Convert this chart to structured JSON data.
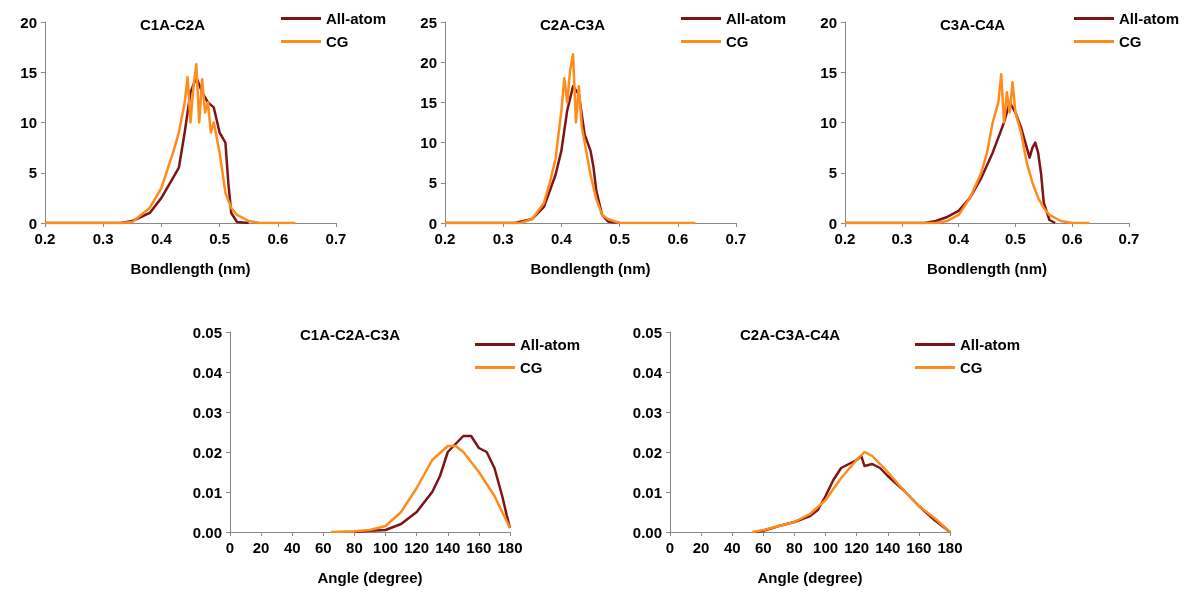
{
  "chart_data": [
    {
      "type": "line",
      "title": "C1A-C2A",
      "xlabel": "Bondlength (nm)",
      "xlim": [
        0.2,
        0.7
      ],
      "xticks": [
        0.2,
        0.3,
        0.4,
        0.5,
        0.6,
        0.7
      ],
      "ylim": [
        0,
        20
      ],
      "yticks": [
        0,
        5,
        10,
        15,
        20
      ],
      "grid": false,
      "legend": "top right",
      "series": [
        {
          "name": "All-atom",
          "color": "#7f1416",
          "x": [
            0.2,
            0.33,
            0.35,
            0.38,
            0.4,
            0.42,
            0.43,
            0.44,
            0.45,
            0.46,
            0.47,
            0.48,
            0.49,
            0.5,
            0.51,
            0.515,
            0.52,
            0.53,
            0.55
          ],
          "values": [
            0,
            0,
            0.2,
            1,
            2.5,
            4.5,
            5.5,
            9,
            13,
            14.5,
            13,
            12,
            11.5,
            9,
            8,
            4,
            1,
            0.1,
            0
          ]
        },
        {
          "name": "CG",
          "color": "#ff8c1a",
          "x": [
            0.2,
            0.33,
            0.35,
            0.38,
            0.4,
            0.42,
            0.43,
            0.44,
            0.445,
            0.45,
            0.455,
            0.46,
            0.465,
            0.47,
            0.475,
            0.48,
            0.485,
            0.49,
            0.5,
            0.505,
            0.51,
            0.52,
            0.53,
            0.55,
            0.57,
            0.63
          ],
          "values": [
            0,
            0,
            0.1,
            1.5,
            3.5,
            7,
            9,
            12,
            14.5,
            10,
            13.5,
            15.8,
            10,
            14.3,
            11,
            12,
            9,
            10,
            7,
            5,
            3,
            1.5,
            0.8,
            0.2,
            0,
            0
          ]
        }
      ]
    },
    {
      "type": "line",
      "title": "C2A-C3A",
      "xlabel": "Bondlength (nm)",
      "xlim": [
        0.2,
        0.7
      ],
      "xticks": [
        0.2,
        0.3,
        0.4,
        0.5,
        0.6,
        0.7
      ],
      "ylim": [
        0,
        25
      ],
      "yticks": [
        0,
        5,
        10,
        15,
        20,
        25
      ],
      "grid": false,
      "legend": "top right",
      "series": [
        {
          "name": "All-atom",
          "color": "#7f1416",
          "x": [
            0.2,
            0.32,
            0.35,
            0.37,
            0.39,
            0.4,
            0.41,
            0.42,
            0.43,
            0.44,
            0.45,
            0.455,
            0.46,
            0.47,
            0.48,
            0.5
          ],
          "values": [
            0,
            0,
            0.5,
            2,
            6,
            9,
            14,
            17,
            16,
            11,
            9,
            7,
            4,
            1,
            0.2,
            0
          ]
        },
        {
          "name": "CG",
          "color": "#ff8c1a",
          "x": [
            0.2,
            0.33,
            0.35,
            0.37,
            0.38,
            0.39,
            0.4,
            0.405,
            0.41,
            0.415,
            0.42,
            0.425,
            0.43,
            0.435,
            0.44,
            0.45,
            0.46,
            0.47,
            0.48,
            0.5,
            0.63
          ],
          "values": [
            0,
            0,
            0.5,
            2.5,
            5,
            8,
            14,
            18,
            15,
            19,
            21,
            12.5,
            17,
            12,
            10,
            6,
            3,
            1,
            0.5,
            0,
            0
          ]
        }
      ]
    },
    {
      "type": "line",
      "title": "C3A-C4A",
      "xlabel": "Bondlength (nm)",
      "xlim": [
        0.2,
        0.7
      ],
      "xticks": [
        0.2,
        0.3,
        0.4,
        0.5,
        0.6,
        0.7
      ],
      "ylim": [
        0,
        20
      ],
      "yticks": [
        0,
        5,
        10,
        15,
        20
      ],
      "grid": false,
      "legend": "top right",
      "series": [
        {
          "name": "All-atom",
          "color": "#7f1416",
          "x": [
            0.2,
            0.34,
            0.36,
            0.38,
            0.4,
            0.42,
            0.44,
            0.46,
            0.47,
            0.48,
            0.49,
            0.5,
            0.51,
            0.52,
            0.525,
            0.53,
            0.535,
            0.54,
            0.545,
            0.55,
            0.56,
            0.57
          ],
          "values": [
            0,
            0,
            0.2,
            0.6,
            1.2,
            2.5,
            4.5,
            7,
            8.5,
            10,
            12,
            11,
            9.5,
            7.5,
            6.5,
            7.5,
            8,
            7,
            5,
            2,
            0.3,
            0
          ]
        },
        {
          "name": "CG",
          "color": "#ff8c1a",
          "x": [
            0.2,
            0.36,
            0.38,
            0.4,
            0.42,
            0.44,
            0.45,
            0.46,
            0.47,
            0.475,
            0.48,
            0.485,
            0.49,
            0.495,
            0.5,
            0.51,
            0.52,
            0.53,
            0.54,
            0.55,
            0.56,
            0.58,
            0.6,
            0.63
          ],
          "values": [
            0,
            0,
            0.2,
            0.8,
            2.5,
            5,
            7,
            10,
            12,
            14.8,
            10,
            13,
            11,
            14,
            11,
            9,
            6,
            4,
            2.5,
            1.5,
            0.8,
            0.2,
            0,
            0
          ]
        }
      ]
    },
    {
      "type": "line",
      "title": "C1A-C2A-C3A",
      "xlabel": "Angle (degree)",
      "xlim": [
        0,
        180
      ],
      "xticks": [
        0,
        20,
        40,
        60,
        80,
        100,
        120,
        140,
        160,
        180
      ],
      "ylim": [
        0,
        0.05
      ],
      "yticks": [
        {
          "value": 0,
          "label": "0.00"
        },
        {
          "value": 0.01,
          "label": "0.01"
        },
        {
          "value": 0.02,
          "label": "0.02"
        },
        {
          "value": 0.03,
          "label": "0.03"
        },
        {
          "value": 0.04,
          "label": "0.04"
        },
        {
          "value": 0.05,
          "label": "0.05"
        }
      ],
      "grid": false,
      "legend": "top right",
      "series": [
        {
          "name": "All-atom",
          "color": "#7f1416",
          "x": [
            80,
            90,
            100,
            110,
            120,
            130,
            135,
            140,
            145,
            150,
            155,
            160,
            165,
            170,
            175,
            178,
            180
          ],
          "values": [
            0,
            0.0003,
            0.0005,
            0.002,
            0.005,
            0.01,
            0.014,
            0.02,
            0.022,
            0.024,
            0.024,
            0.021,
            0.02,
            0.016,
            0.009,
            0.004,
            0.001
          ]
        },
        {
          "name": "CG",
          "color": "#ff8c1a",
          "x": [
            65,
            80,
            90,
            100,
            110,
            120,
            130,
            140,
            145,
            150,
            160,
            170,
            180
          ],
          "values": [
            0,
            0.0002,
            0.0005,
            0.0015,
            0.005,
            0.011,
            0.018,
            0.0215,
            0.0215,
            0.02,
            0.015,
            0.009,
            0.001
          ]
        }
      ]
    },
    {
      "type": "line",
      "title": "C2A-C3A-C4A",
      "xlabel": "Angle (degree)",
      "xlim": [
        0,
        180
      ],
      "xticks": [
        0,
        20,
        40,
        60,
        80,
        100,
        120,
        140,
        160,
        180
      ],
      "ylim": [
        0,
        0.05
      ],
      "yticks": [
        {
          "value": 0,
          "label": "0.00"
        },
        {
          "value": 0.01,
          "label": "0.01"
        },
        {
          "value": 0.02,
          "label": "0.02"
        },
        {
          "value": 0.03,
          "label": "0.03"
        },
        {
          "value": 0.04,
          "label": "0.04"
        },
        {
          "value": 0.05,
          "label": "0.05"
        }
      ],
      "grid": false,
      "legend": "top right",
      "series": [
        {
          "name": "All-atom",
          "color": "#7f1416",
          "x": [
            55,
            60,
            70,
            80,
            90,
            95,
            100,
            105,
            110,
            115,
            120,
            123,
            125,
            130,
            135,
            140,
            150,
            160,
            170,
            180
          ],
          "values": [
            0,
            0.0003,
            0.0015,
            0.0025,
            0.004,
            0.0055,
            0.009,
            0.013,
            0.016,
            0.017,
            0.018,
            0.019,
            0.0165,
            0.017,
            0.016,
            0.014,
            0.0105,
            0.0065,
            0.003,
            0
          ]
        },
        {
          "name": "CG",
          "color": "#ff8c1a",
          "x": [
            53,
            60,
            70,
            80,
            90,
            100,
            110,
            120,
            125,
            130,
            140,
            150,
            160,
            170,
            180
          ],
          "values": [
            0,
            0.0005,
            0.0015,
            0.0025,
            0.0045,
            0.008,
            0.0135,
            0.018,
            0.02,
            0.019,
            0.015,
            0.0105,
            0.0065,
            0.0035,
            0
          ]
        }
      ]
    }
  ]
}
